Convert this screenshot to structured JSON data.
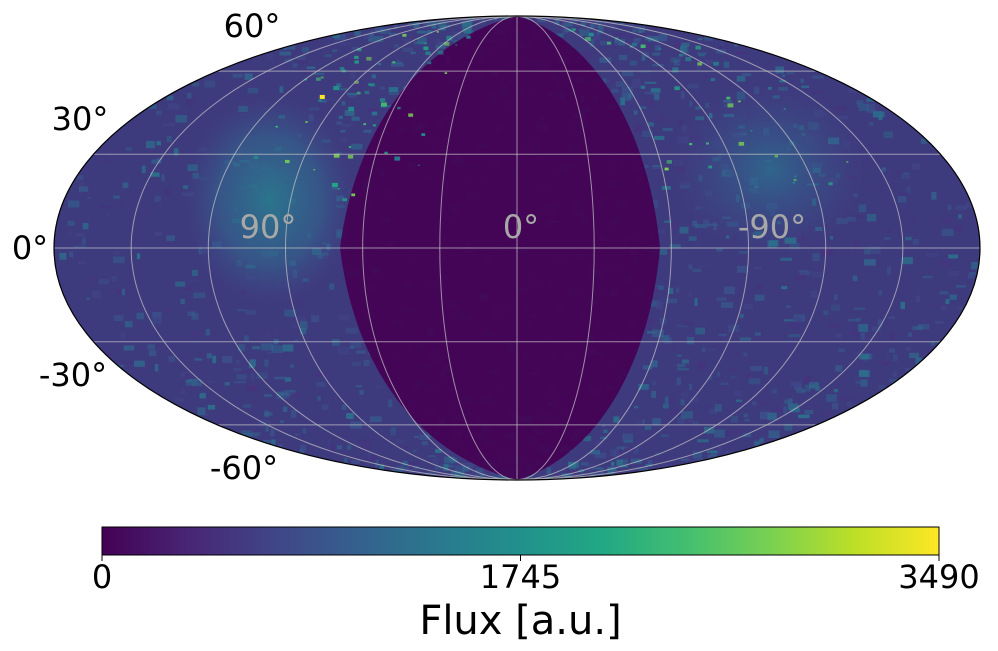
{
  "chart_data": {
    "type": "heatmap",
    "projection": "mollweide",
    "title": "",
    "colormap": "viridis",
    "latitude_gridlines": [
      -60,
      -30,
      0,
      30,
      60
    ],
    "longitude_gridlines": [
      -150,
      -120,
      -90,
      -60,
      -30,
      0,
      30,
      60,
      90,
      120,
      150
    ],
    "latitude_labels": [
      "60°",
      "30°",
      "0°",
      "-30°",
      "-60°"
    ],
    "longitude_labels": [
      "90°",
      "0°",
      "-90°"
    ],
    "longitude_direction": "increasing to the left",
    "grid": true,
    "colorbar": {
      "orientation": "horizontal",
      "position": "bottom",
      "label": "Flux [a.u.]",
      "range": [
        0,
        3490
      ],
      "ticks": [
        "0",
        "1745",
        "3490"
      ]
    },
    "features": [
      {
        "description": "extended bright band",
        "lon_range": [
          30,
          105
        ],
        "lat_range": [
          -15,
          60
        ],
        "level": 1000
      },
      {
        "description": "bright patch",
        "lon_range": [
          -120,
          -60
        ],
        "lat_range": [
          10,
          60
        ],
        "level": 800
      },
      {
        "description": "dim central region",
        "lon_range": [
          -60,
          45
        ],
        "lat_range": [
          -80,
          80
        ],
        "level": 100
      },
      {
        "description": "peak hotspot",
        "lon": 100,
        "lat": 50,
        "level": 3490
      }
    ],
    "colors": {
      "low": "#440154",
      "mid": "#21918c",
      "high": "#fde725",
      "grid": "#c8c8c8",
      "lon_label": "#a8a8a8"
    }
  }
}
